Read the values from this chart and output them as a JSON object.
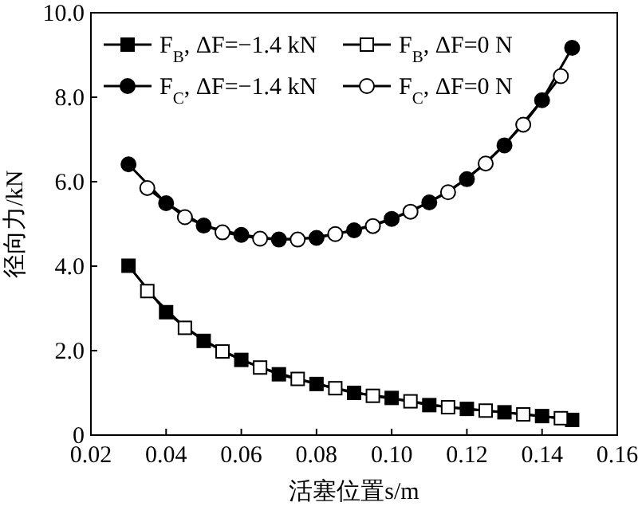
{
  "chart_data": {
    "type": "line",
    "xlabel": "活塞位置s/m",
    "ylabel": "径向力/kN",
    "xlim": [
      0.02,
      0.16
    ],
    "ylim": [
      0,
      10
    ],
    "xticks": [
      {
        "value": 0.02,
        "label": "0.02"
      },
      {
        "value": 0.04,
        "label": "0.04"
      },
      {
        "value": 0.06,
        "label": "0.06"
      },
      {
        "value": 0.08,
        "label": "0.08"
      },
      {
        "value": 0.1,
        "label": "0.10"
      },
      {
        "value": 0.12,
        "label": "0.12"
      },
      {
        "value": 0.14,
        "label": "0.14"
      },
      {
        "value": 0.16,
        "label": "0.16"
      }
    ],
    "yticks": [
      0,
      {
        "value": 2,
        "label": "2.0"
      },
      {
        "value": 4,
        "label": "4.0"
      },
      {
        "value": 6,
        "label": "6.0"
      },
      {
        "value": 8,
        "label": "8.0"
      },
      {
        "value": 10,
        "label": "10.0"
      }
    ],
    "legend": "top",
    "grid": false,
    "line_style": "solid",
    "series": [
      {
        "name": "F$_{B}$, ΔF=−1.4 kN",
        "color": "#000000",
        "marker": "square",
        "x": [
          0.03,
          0.04,
          0.05,
          0.06,
          0.07,
          0.08,
          0.09,
          0.1,
          0.11,
          0.12,
          0.13,
          0.14,
          0.148
        ],
        "values": [
          4.01,
          2.91,
          2.23,
          1.78,
          1.44,
          1.21,
          1.0,
          0.88,
          0.71,
          0.62,
          0.54,
          0.45,
          0.36
        ]
      },
      {
        "name": "F$_{B}$, ΔF=0 N",
        "color": "#ffffff",
        "marker": "square",
        "x": [
          0.035,
          0.045,
          0.055,
          0.065,
          0.075,
          0.085,
          0.095,
          0.105,
          0.115,
          0.125,
          0.135,
          0.145
        ],
        "values": [
          3.41,
          2.54,
          1.98,
          1.6,
          1.33,
          1.11,
          0.93,
          0.8,
          0.66,
          0.58,
          0.49,
          0.4
        ]
      },
      {
        "name": "F$_{C}$, ΔF=−1.4 kN",
        "color": "#000000",
        "marker": "circle",
        "x": [
          0.03,
          0.04,
          0.05,
          0.06,
          0.07,
          0.08,
          0.09,
          0.1,
          0.11,
          0.12,
          0.13,
          0.14,
          0.148
        ],
        "values": [
          6.41,
          5.49,
          4.96,
          4.74,
          4.63,
          4.67,
          4.85,
          5.12,
          5.51,
          6.06,
          6.86,
          7.93,
          9.17
        ]
      },
      {
        "name": "F$_{C}$, ΔF=0 N",
        "color": "#ffffff",
        "marker": "circle",
        "x": [
          0.035,
          0.045,
          0.055,
          0.065,
          0.075,
          0.085,
          0.095,
          0.105,
          0.115,
          0.125,
          0.135,
          0.145
        ],
        "values": [
          5.85,
          5.16,
          4.8,
          4.65,
          4.63,
          4.76,
          4.95,
          5.29,
          5.75,
          6.43,
          7.35,
          8.5
        ]
      }
    ]
  }
}
